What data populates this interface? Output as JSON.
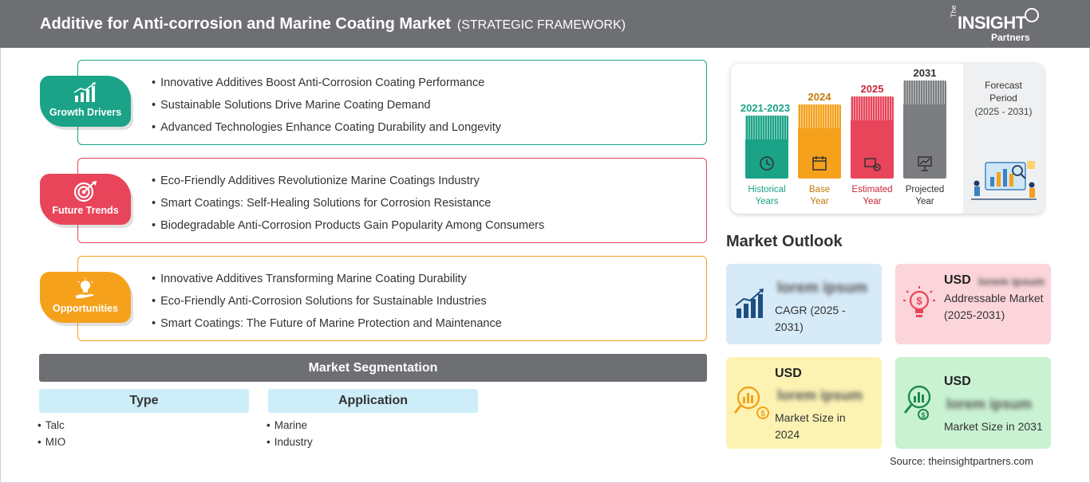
{
  "header": {
    "title": "Additive for Anti-corrosion and Marine Coating Market",
    "subtitle": "(STRATEGIC FRAMEWORK)",
    "logo": {
      "the": "The",
      "insight": "INSIGHT",
      "partners": "Partners"
    }
  },
  "framework": {
    "growth_drivers": {
      "label": "Growth Drivers",
      "color": "#1aa386",
      "icon": "bar-chart-growth-icon",
      "items": [
        "Innovative Additives Boost Anti-Corrosion Coating Performance",
        "Sustainable Solutions Drive Marine Coating Demand",
        "Advanced Technologies Enhance Coating Durability and Longevity"
      ]
    },
    "future_trends": {
      "label": "Future Trends",
      "color": "#e8455a",
      "icon": "target-icon",
      "items": [
        "Eco-Friendly Additives Revolutionize Marine Coatings Industry",
        "Smart Coatings: Self-Healing Solutions for Corrosion Resistance",
        "Biodegradable Anti-Corrosion Products Gain Popularity Among Consumers"
      ]
    },
    "opportunities": {
      "label": "Opportunities",
      "color": "#f5a11c",
      "icon": "lightbulb-hand-icon",
      "items": [
        "Innovative Additives Transforming Marine Coating Durability",
        "Eco-Friendly Anti-Corrosion Solutions for Sustainable Industries",
        "Smart Coatings: The Future of Marine Protection and Maintenance"
      ]
    }
  },
  "segmentation": {
    "title": "Market Segmentation",
    "type": {
      "label": "Type",
      "items": [
        "Talc",
        "MIO"
      ]
    },
    "application": {
      "label": "Application",
      "items": [
        "Marine",
        "Industry"
      ]
    }
  },
  "timeline": {
    "historical": {
      "year": "2021-2023",
      "caption_1": "Historical",
      "caption_2": "Years",
      "color": "#1aa386"
    },
    "base": {
      "year": "2024",
      "caption_1": "Base",
      "caption_2": "Year",
      "color": "#f5a11c"
    },
    "estimated": {
      "year": "2025",
      "caption_1": "Estimated",
      "caption_2": "Year",
      "color": "#e8455a"
    },
    "projected": {
      "year": "2031",
      "caption_1": "Projected",
      "caption_2": "Year",
      "color": "#7b7d80"
    },
    "forecast": {
      "label_1": "Forecast",
      "label_2": "Period",
      "range": "(2025 - 2031)"
    }
  },
  "outlook": {
    "title": "Market Outlook",
    "cagr": {
      "value": "lorem ipsum",
      "caption": "CAGR (2025 - 2031)",
      "color": "#d6eaf7"
    },
    "addressable": {
      "usd": "USD",
      "value": "lorem ipsum",
      "caption": "Addressable Market (2025-2031)",
      "color": "#fbd5da"
    },
    "size_2024": {
      "usd": "USD",
      "value": "lorem ipsum",
      "caption": "Market Size in 2024",
      "color": "#fcf3b3"
    },
    "size_2031": {
      "usd": "USD",
      "value": "lorem ipsum",
      "caption": "Market Size in 2031",
      "color": "#c9f2d2"
    }
  },
  "source": "Source: theinsightpartners.com"
}
